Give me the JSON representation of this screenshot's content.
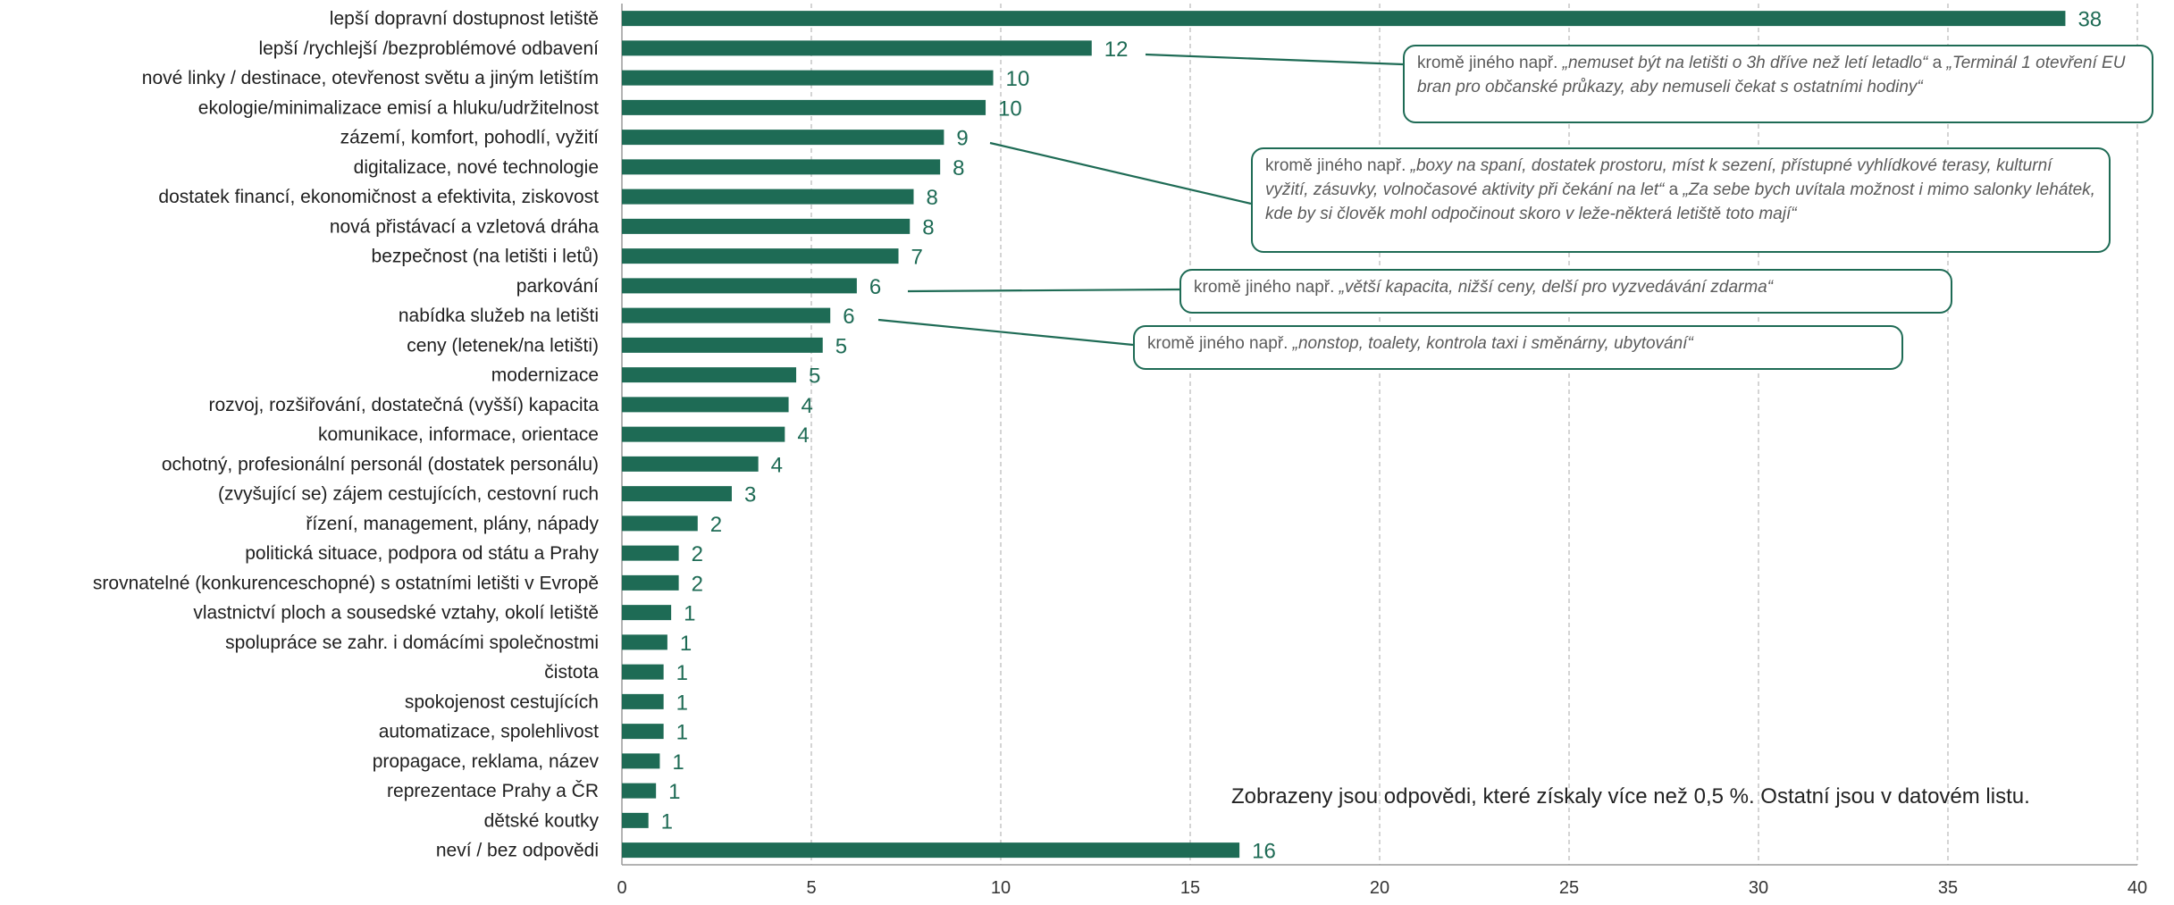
{
  "chart_data": {
    "type": "bar",
    "orientation": "horizontal",
    "categories": [
      "lepší dopravní dostupnost letiště",
      "lepší /rychlejší /bezproblémové odbavení",
      "nové linky / destinace, otevřenost světu a jiným letištím",
      "ekologie/minimalizace emisí a hluku/udržitelnost",
      "zázemí, komfort, pohodlí, vyžití",
      "digitalizace, nové technologie",
      "dostatek financí, ekonomičnost a efektivita, ziskovost",
      "nová přistávací a vzletová dráha",
      "bezpečnost (na letišti i letů)",
      "parkování",
      "nabídka služeb na letišti",
      "ceny (letenek/na letišti)",
      "modernizace",
      "rozvoj, rozšiřování, dostatečná (vyšší) kapacita",
      "komunikace, informace, orientace",
      "ochotný, profesionální personál (dostatek personálu)",
      "(zvyšující se) zájem cestujících, cestovní ruch",
      "řízení, management, plány, nápady",
      "politická situace, podpora od státu a Prahy",
      "srovnatelné (konkurenceschopné) s ostatními letišti v Evropě",
      "vlastnictví ploch a sousedské vztahy, okolí letiště",
      "spolupráce se zahr. i domácími společnostmi",
      "čistota",
      "spokojenost cestujících",
      "automatizace, spolehlivost",
      "propagace, reklama, název",
      "reprezentace Prahy a ČR",
      "dětské koutky",
      "neví / bez odpovědi"
    ],
    "values": [
      38.1,
      12.4,
      9.8,
      9.6,
      8.5,
      8.4,
      7.7,
      7.6,
      7.3,
      6.2,
      5.5,
      5.3,
      4.6,
      4.4,
      4.3,
      3.6,
      2.9,
      2.0,
      1.5,
      1.5,
      1.3,
      1.2,
      1.1,
      1.1,
      1.1,
      1.0,
      0.9,
      0.7,
      16.3
    ],
    "value_labels": [
      "38",
      "12",
      "10",
      "10",
      "9",
      "8",
      "8",
      "8",
      "7",
      "6",
      "6",
      "5",
      "5",
      "4",
      "4",
      "4",
      "3",
      "2",
      "2",
      "2",
      "1",
      "1",
      "1",
      "1",
      "1",
      "1",
      "1",
      "1",
      "16"
    ],
    "xlim": [
      0,
      40
    ],
    "xticks": [
      0,
      5,
      10,
      15,
      20,
      25,
      30,
      35,
      40
    ],
    "grid": "vertical dashed",
    "bar_color": "#1e6b55",
    "label_color": "#1e6b55",
    "title": "",
    "xlabel": "",
    "ylabel": ""
  },
  "callouts": [
    {
      "target": "lepší /rychlejší /bezproblémové odbavení",
      "prefix": "kromě jiného např.",
      "quote1": "„nemuset být na letišti o 3h dříve než letí letadlo“",
      "mid": "a",
      "quote2": "„Terminál 1 otevření EU bran pro občanské průkazy, aby nemuseli čekat s ostatními hodiny“"
    },
    {
      "target": "zázemí, komfort, pohodlí, vyžití",
      "prefix": "kromě jiného např.",
      "quote1": "„boxy na spaní,  dostatek prostoru, míst k sezení, přístupné vyhlídkové terasy, kulturní vyžití, zásuvky, volnočasové aktivity při čekání na let“",
      "mid": "a",
      "quote2": "„Za sebe bych uvítala možnost i mimo salonky lehátek, kde by si člověk mohl odpočinout skoro v leže-některá letiště toto mají“"
    },
    {
      "target": "parkování",
      "prefix": "kromě jiného např.",
      "quote1": "„větší kapacita, nižší ceny, delší pro vyzvedávání zdarma“"
    },
    {
      "target": "nabídka služeb na letišti",
      "prefix": "kromě jiného např.",
      "quote1": "„nonstop, toalety, kontrola taxi i směnárny, ubytování“"
    }
  ],
  "note": "Zobrazeny jsou odpovědi, které získaly více než 0,5 %. Ostatní jsou v datovém listu."
}
